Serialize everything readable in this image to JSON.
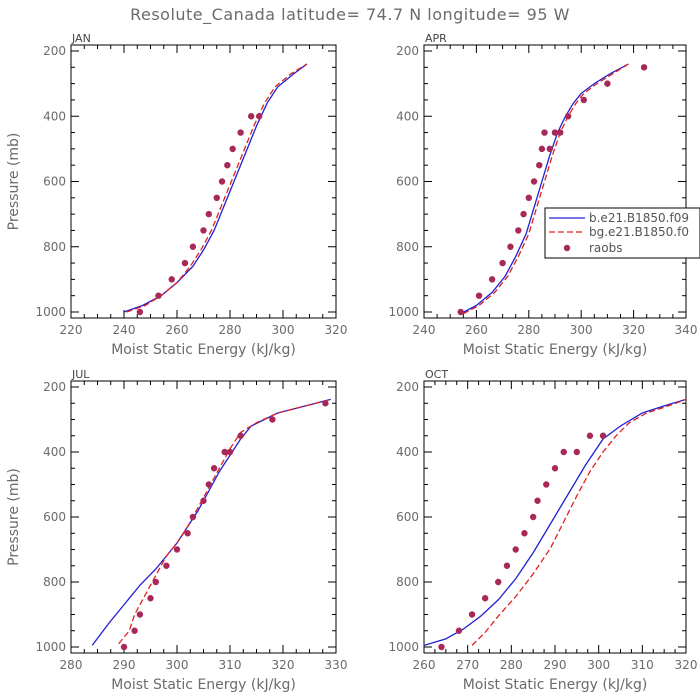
{
  "title": "Resolute_Canada  latitude= 74.7 N longitude= 95 W",
  "colors": {
    "model1": "#2020d0",
    "model2": "#e02020",
    "raobs": "#a8285a"
  },
  "legend": {
    "placement": "inside-right of APR panel",
    "entries": [
      {
        "label": "b.e21.B1850.f09",
        "style": "solid-line",
        "color": "#2020d0"
      },
      {
        "label": "bg.e21.B1850.f0",
        "style": "dashed-line",
        "color": "#e02020"
      },
      {
        "label": "raobs",
        "style": "dot",
        "color": "#a8285a"
      }
    ]
  },
  "chart_data": [
    {
      "type": "line",
      "panel": "JAN",
      "xlabel": "Moist Static Energy (kJ/kg)",
      "ylabel": "Pressure (mb)",
      "xlim": [
        220,
        320
      ],
      "ylim": [
        1000,
        200
      ],
      "xticks": [
        220,
        240,
        260,
        280,
        300,
        320
      ],
      "yticks": [
        200,
        400,
        600,
        800,
        1000
      ],
      "series": [
        {
          "name": "b.e21.B1850.f09",
          "x": [
            240,
            247,
            254,
            260,
            266,
            270,
            274,
            278,
            282,
            286,
            290,
            294,
            298,
            304,
            309
          ],
          "y": [
            1000,
            980,
            950,
            910,
            860,
            810,
            750,
            670,
            590,
            510,
            430,
            360,
            310,
            270,
            240
          ]
        },
        {
          "name": "bg.e21.B1850.f0",
          "x": [
            241,
            248,
            254,
            260,
            265,
            269,
            273,
            277,
            281,
            285,
            289,
            293,
            297,
            303,
            309
          ],
          "y": [
            1000,
            980,
            950,
            910,
            860,
            810,
            750,
            670,
            590,
            510,
            430,
            360,
            310,
            270,
            240
          ]
        },
        {
          "name": "raobs",
          "marker": "dot",
          "x": [
            246,
            253,
            258,
            263,
            266,
            270,
            272,
            275,
            277,
            279,
            281,
            284,
            288,
            291
          ],
          "y": [
            1000,
            950,
            900,
            850,
            800,
            750,
            700,
            650,
            600,
            550,
            500,
            450,
            400,
            400
          ]
        }
      ]
    },
    {
      "type": "line",
      "panel": "APR",
      "xlabel": "Moist Static Energy (kJ/kg)",
      "ylabel": "",
      "xlim": [
        240,
        340
      ],
      "ylim": [
        1000,
        200
      ],
      "xticks": [
        240,
        260,
        280,
        300,
        320,
        340
      ],
      "yticks": [
        200,
        400,
        600,
        800,
        1000
      ],
      "series": [
        {
          "name": "b.e21.B1850.f09",
          "x": [
            254,
            260,
            266,
            271,
            275,
            279,
            282,
            285,
            288,
            291,
            294,
            297,
            300,
            305,
            311,
            318
          ],
          "y": [
            1005,
            980,
            940,
            890,
            830,
            760,
            680,
            600,
            520,
            450,
            400,
            360,
            330,
            300,
            270,
            240
          ]
        },
        {
          "name": "bg.e21.B1850.f0",
          "x": [
            255,
            261,
            267,
            272,
            276,
            280,
            283,
            286,
            289,
            292,
            295,
            298,
            301,
            306,
            312,
            318
          ],
          "y": [
            1005,
            980,
            940,
            890,
            830,
            760,
            680,
            600,
            520,
            450,
            400,
            360,
            330,
            300,
            270,
            240
          ]
        },
        {
          "name": "raobs",
          "marker": "dot",
          "x": [
            254,
            261,
            266,
            270,
            273,
            276,
            278,
            280,
            282,
            284,
            285,
            286,
            288,
            290,
            292,
            295,
            301,
            310,
            324
          ],
          "y": [
            1000,
            950,
            900,
            850,
            800,
            750,
            700,
            650,
            600,
            550,
            500,
            450,
            500,
            450,
            450,
            400,
            350,
            300,
            250
          ]
        }
      ]
    },
    {
      "type": "line",
      "panel": "JUL",
      "xlabel": "Moist Static Energy (kJ/kg)",
      "ylabel": "Pressure (mb)",
      "xlim": [
        280,
        330
      ],
      "ylim": [
        1000,
        200
      ],
      "xticks": [
        280,
        290,
        300,
        310,
        320,
        330
      ],
      "yticks": [
        200,
        400,
        600,
        800,
        1000
      ],
      "series": [
        {
          "name": "b.e21.B1850.f09",
          "x": [
            284,
            287,
            290,
            293,
            296,
            298,
            300,
            302,
            304,
            306,
            308,
            310,
            312,
            314,
            319,
            325,
            329
          ],
          "y": [
            995,
            930,
            870,
            810,
            760,
            720,
            680,
            630,
            580,
            520,
            460,
            410,
            360,
            320,
            280,
            255,
            238
          ]
        },
        {
          "name": "bg.e21.B1850.f0",
          "x": [
            289,
            291,
            292,
            294,
            296,
            298,
            300,
            302,
            304,
            306,
            308,
            310,
            312,
            315,
            319,
            325,
            329
          ],
          "y": [
            990,
            950,
            900,
            840,
            780,
            720,
            680,
            630,
            570,
            510,
            450,
            390,
            340,
            310,
            280,
            255,
            238
          ]
        },
        {
          "name": "raobs",
          "marker": "dot",
          "x": [
            290,
            292,
            293,
            295,
            296,
            298,
            300,
            302,
            303,
            305,
            306,
            307,
            309,
            310,
            312,
            318,
            328
          ],
          "y": [
            1000,
            950,
            900,
            850,
            800,
            750,
            700,
            650,
            600,
            550,
            500,
            450,
            400,
            400,
            350,
            300,
            250
          ]
        }
      ]
    },
    {
      "type": "line",
      "panel": "OCT",
      "xlabel": "Moist Static Energy (kJ/kg)",
      "ylabel": "",
      "xlim": [
        260,
        320
      ],
      "ylim": [
        1000,
        200
      ],
      "xticks": [
        260,
        270,
        280,
        290,
        300,
        310,
        320
      ],
      "yticks": [
        200,
        400,
        600,
        800,
        1000
      ],
      "series": [
        {
          "name": "b.e21.B1850.f09",
          "x": [
            260,
            265,
            269,
            273,
            277,
            281,
            285,
            289,
            293,
            297,
            301,
            305,
            310,
            315,
            320
          ],
          "y": [
            995,
            975,
            945,
            905,
            855,
            790,
            710,
            620,
            530,
            440,
            360,
            320,
            280,
            258,
            238
          ]
        },
        {
          "name": "bg.e21.B1850.f0",
          "x": [
            271,
            274,
            277,
            281,
            285,
            289,
            292,
            295,
            298,
            301,
            304,
            307,
            311,
            316,
            320
          ],
          "y": [
            995,
            955,
            905,
            845,
            775,
            695,
            615,
            535,
            460,
            400,
            350,
            310,
            280,
            258,
            238
          ]
        },
        {
          "name": "raobs",
          "marker": "dot",
          "x": [
            264,
            268,
            271,
            274,
            277,
            279,
            281,
            283,
            285,
            286,
            288,
            290,
            292,
            295,
            298,
            301
          ],
          "y": [
            1000,
            950,
            900,
            850,
            800,
            750,
            700,
            650,
            600,
            550,
            500,
            450,
            400,
            400,
            350,
            350
          ]
        }
      ]
    }
  ]
}
